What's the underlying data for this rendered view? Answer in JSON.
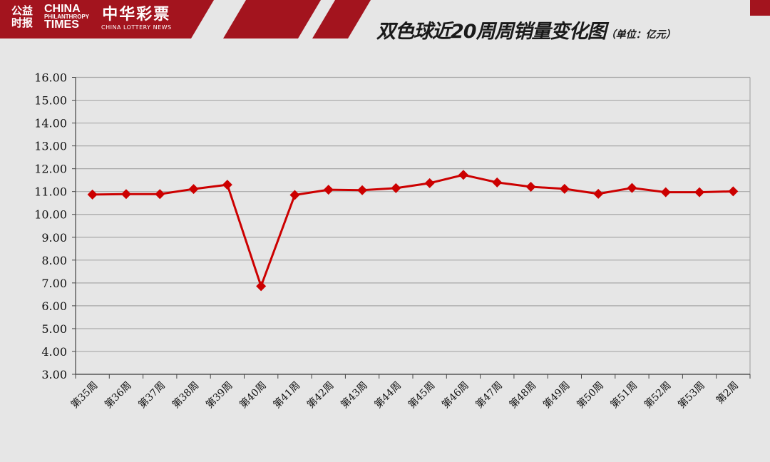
{
  "header": {
    "logo_cn": "公益时报",
    "logo_en_top": "CHINA",
    "logo_en_mid": "PHILANTHROPY",
    "logo_en_bottom": "TIMES",
    "lottery_cn": "中华彩票",
    "lottery_en": "CHINA LOTTERY NEWS",
    "title": "双色球近20周周销量变化图",
    "unit": "（单位：亿元）"
  },
  "colors": {
    "line": "#cc0000",
    "banner": "#a3141e",
    "grid": "#a8a8a8"
  },
  "chart_data": {
    "type": "line",
    "title": "双色球近20周周销量变化图",
    "unit": "（单位：亿元）",
    "ylim": [
      3,
      16
    ],
    "yticks": [
      "3.00",
      "4.00",
      "5.00",
      "6.00",
      "7.00",
      "8.00",
      "9.00",
      "10.00",
      "11.00",
      "12.00",
      "13.00",
      "14.00",
      "15.00",
      "16.00"
    ],
    "grid": true,
    "legend": "none",
    "marker": "diamond",
    "categories": [
      "第35周",
      "第36周",
      "第37周",
      "第38周",
      "第39周",
      "第40周",
      "第41周",
      "第42周",
      "第43周",
      "第44周",
      "第45周",
      "第46周",
      "第47周",
      "第48周",
      "第49周",
      "第50周",
      "第51周",
      "第52周",
      "第53周",
      "第2周"
    ],
    "values": [
      10.87,
      10.89,
      10.89,
      11.11,
      11.3,
      6.86,
      10.85,
      11.08,
      11.06,
      11.15,
      11.37,
      11.73,
      11.4,
      11.21,
      11.12,
      10.9,
      11.16,
      10.97,
      10.97,
      11.01
    ]
  }
}
